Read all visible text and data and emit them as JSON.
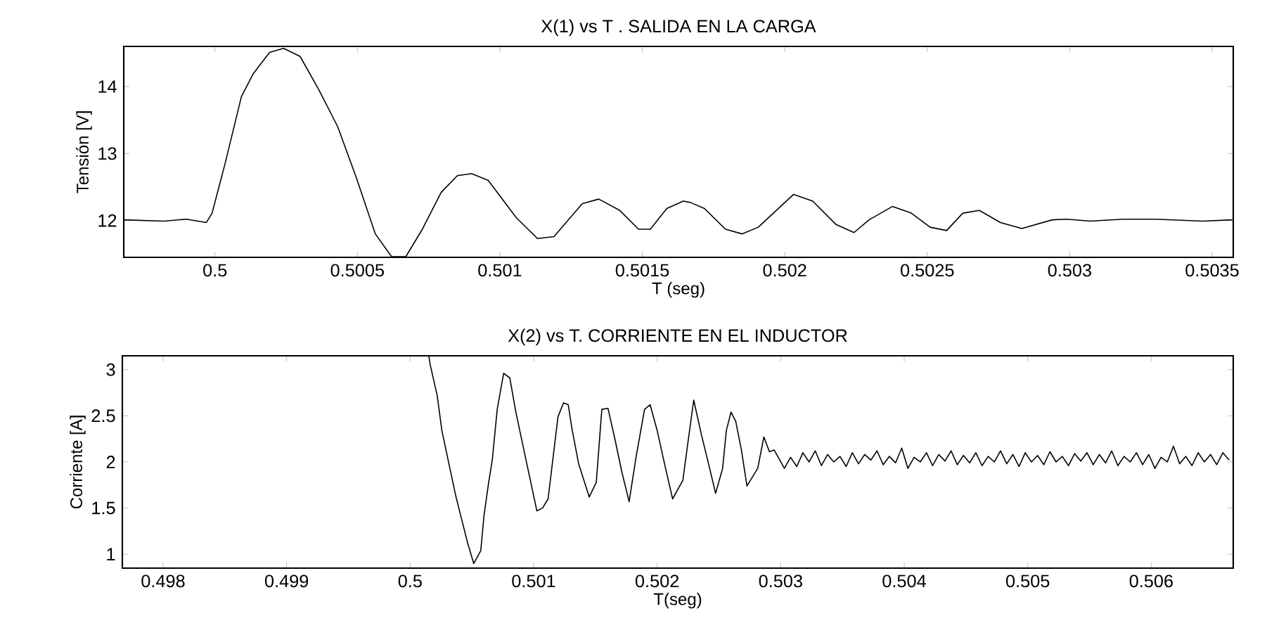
{
  "chart_data": [
    {
      "type": "line",
      "title": "X(1) vs T . SALIDA EN LA CARGA",
      "xlabel": "T (seg)",
      "ylabel": "Tensión [V]",
      "line_style": "solid",
      "xlim": [
        0.49968,
        0.503574
      ],
      "ylim": [
        11.45,
        14.6
      ],
      "xticks": [
        0.5,
        0.5005,
        0.501,
        0.5015,
        0.502,
        0.5025,
        0.503,
        0.5035
      ],
      "yticks": [
        12,
        13,
        14
      ],
      "series": [
        {
          "color": "#000000",
          "x": [
            0.49968,
            0.49982,
            0.4999,
            0.49997,
            0.49999,
            0.500035,
            0.500093,
            0.500134,
            0.500192,
            0.500241,
            0.500299,
            0.500365,
            0.500431,
            0.500497,
            0.500563,
            0.50062,
            0.50067,
            0.500728,
            0.500794,
            0.500851,
            0.500901,
            0.500959,
            0.501058,
            0.501132,
            0.50119,
            0.501289,
            0.501347,
            0.501421,
            0.501487,
            0.501528,
            0.501586,
            0.501644,
            0.501668,
            0.501718,
            0.501792,
            0.50185,
            0.501907,
            0.502031,
            0.502098,
            0.50218,
            0.502243,
            0.502296,
            0.502378,
            0.502444,
            0.50251,
            0.502568,
            0.502625,
            0.502683,
            0.502757,
            0.502832,
            0.502939,
            0.502989,
            0.503071,
            0.503187,
            0.503302,
            0.503467,
            0.50357
          ],
          "values": [
            12.01,
            11.99,
            12.02,
            11.97,
            12.11,
            12.84,
            13.85,
            14.19,
            14.51,
            14.57,
            14.45,
            13.95,
            13.4,
            12.63,
            11.8,
            11.46,
            11.46,
            11.87,
            12.42,
            12.67,
            12.7,
            12.6,
            12.04,
            11.73,
            11.76,
            12.25,
            12.32,
            12.15,
            11.87,
            11.87,
            12.18,
            12.29,
            12.27,
            12.18,
            11.87,
            11.8,
            11.9,
            12.39,
            12.29,
            11.94,
            11.82,
            12.01,
            12.21,
            12.11,
            11.9,
            11.85,
            12.11,
            12.15,
            11.97,
            11.88,
            12.01,
            12.02,
            11.99,
            12.02,
            12.02,
            11.99,
            12.01
          ]
        }
      ]
    },
    {
      "type": "line",
      "title": "X(2) vs T. CORRIENTE EN EL INDUCTOR",
      "xlabel": "T(seg)",
      "ylabel": "Corriente [A]",
      "line_style": "solid",
      "xlim": [
        0.49767,
        0.506664
      ],
      "ylim": [
        0.85,
        3.15
      ],
      "xticks": [
        0.498,
        0.499,
        0.5,
        0.501,
        0.502,
        0.503,
        0.504,
        0.505,
        0.506
      ],
      "yticks": [
        1,
        1.5,
        2,
        2.5,
        3
      ],
      "series": [
        {
          "color": "#000000",
          "x": [
            0.500151,
            0.500163,
            0.500219,
            0.500257,
            0.500314,
            0.50037,
            0.500409,
            0.500466,
            0.500515,
            0.500572,
            0.500598,
            0.500636,
            0.500666,
            0.500705,
            0.500757,
            0.500807,
            0.500856,
            0.500932,
            0.501026,
            0.501072,
            0.501117,
            0.501197,
            0.501242,
            0.50128,
            0.50131,
            0.501364,
            0.50145,
            0.501507,
            0.501552,
            0.501602,
            0.501659,
            0.501716,
            0.501773,
            0.50183,
            0.501898,
            0.501943,
            0.502,
            0.502068,
            0.502125,
            0.502208,
            0.502246,
            0.502296,
            0.502359,
            0.502416,
            0.502473,
            0.50253,
            0.50256,
            0.502598,
            0.502636,
            0.502682,
            0.502727,
            0.502814,
            0.502864,
            0.502909,
            0.502947,
            0.50303,
            0.50308,
            0.50313,
            0.50318,
            0.50323,
            0.50328,
            0.50333,
            0.50338,
            0.50343,
            0.50348,
            0.50353,
            0.50358,
            0.50363,
            0.50368,
            0.50373,
            0.50378,
            0.50383,
            0.50388,
            0.50393,
            0.50398,
            0.50403,
            0.50408,
            0.50413,
            0.50418,
            0.50423,
            0.50428,
            0.50433,
            0.50438,
            0.50443,
            0.50448,
            0.50453,
            0.50458,
            0.50463,
            0.50468,
            0.50473,
            0.50478,
            0.50483,
            0.50488,
            0.50493,
            0.50498,
            0.50503,
            0.50508,
            0.50513,
            0.50518,
            0.50523,
            0.50528,
            0.50533,
            0.50538,
            0.50543,
            0.50548,
            0.50553,
            0.50558,
            0.50563,
            0.50568,
            0.50573,
            0.50578,
            0.50583,
            0.50588,
            0.50593,
            0.50598,
            0.50603,
            0.50608,
            0.50613,
            0.50618,
            0.50623,
            0.50628,
            0.50633,
            0.50638,
            0.50643,
            0.50648,
            0.50653,
            0.50658,
            0.50663
          ],
          "values": [
            3.15,
            3.05,
            2.72,
            2.34,
            1.98,
            1.63,
            1.42,
            1.12,
            0.9,
            1.04,
            1.42,
            1.78,
            2.03,
            2.57,
            2.96,
            2.91,
            2.54,
            2.06,
            1.47,
            1.5,
            1.6,
            2.49,
            2.64,
            2.62,
            2.36,
            1.98,
            1.62,
            1.78,
            2.57,
            2.58,
            2.24,
            1.88,
            1.57,
            2.06,
            2.57,
            2.62,
            2.34,
            1.93,
            1.6,
            1.8,
            2.18,
            2.67,
            2.29,
            1.98,
            1.66,
            1.93,
            2.34,
            2.54,
            2.44,
            2.13,
            1.74,
            1.93,
            2.27,
            2.11,
            2.13,
            1.93,
            2.05,
            1.95,
            2.1,
            2.0,
            2.12,
            1.96,
            2.08,
            2.0,
            2.06,
            1.95,
            2.1,
            1.98,
            2.08,
            2.02,
            2.12,
            1.97,
            2.06,
            1.99,
            2.15,
            1.93,
            2.05,
            2.0,
            2.1,
            1.96,
            2.08,
            2.01,
            2.12,
            1.97,
            2.07,
            1.99,
            2.1,
            1.96,
            2.06,
            2.0,
            2.12,
            1.98,
            2.08,
            1.95,
            2.1,
            2.0,
            2.07,
            1.97,
            2.11,
            2.0,
            2.06,
            1.96,
            2.09,
            2.01,
            2.1,
            1.97,
            2.08,
            1.99,
            2.12,
            1.96,
            2.06,
            2.0,
            2.1,
            1.97,
            2.08,
            1.93,
            2.05,
            2.0,
            2.17,
            1.98,
            2.06,
            1.96,
            2.1,
            2.0,
            2.08,
            1.97,
            2.1,
            2.02
          ]
        }
      ]
    }
  ]
}
